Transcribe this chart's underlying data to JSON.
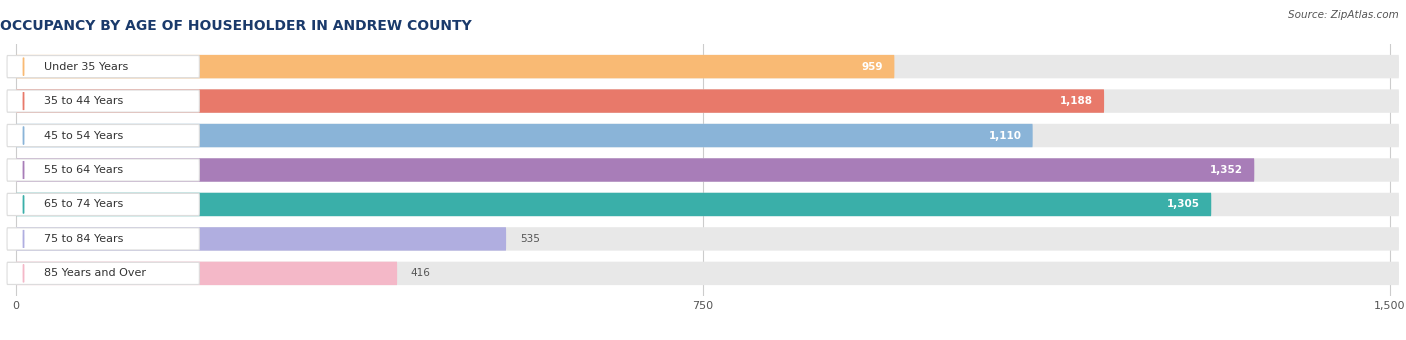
{
  "title": "OCCUPANCY BY AGE OF HOUSEHOLDER IN ANDREW COUNTY",
  "source": "Source: ZipAtlas.com",
  "categories": [
    "Under 35 Years",
    "35 to 44 Years",
    "45 to 54 Years",
    "55 to 64 Years",
    "65 to 74 Years",
    "75 to 84 Years",
    "85 Years and Over"
  ],
  "values": [
    959,
    1188,
    1110,
    1352,
    1305,
    535,
    416
  ],
  "bar_colors": [
    "#f9ba74",
    "#e8796a",
    "#8ab4d8",
    "#a87db8",
    "#3aafa9",
    "#b0aee0",
    "#f4b8c8"
  ],
  "bar_edge_colors": [
    "#e8a050",
    "#d05a4a",
    "#6a90c0",
    "#8860a0",
    "#258a85",
    "#8886c0",
    "#e090a8"
  ],
  "xlim_max": 1500,
  "xticks": [
    0,
    750,
    1500
  ],
  "background_color": "#ffffff",
  "bar_bg_color": "#e8e8e8",
  "label_bg_color": "#ffffff",
  "title_fontsize": 10,
  "label_fontsize": 8,
  "value_fontsize": 7.5,
  "bar_height": 0.68,
  "fig_width": 14.06,
  "fig_height": 3.4
}
